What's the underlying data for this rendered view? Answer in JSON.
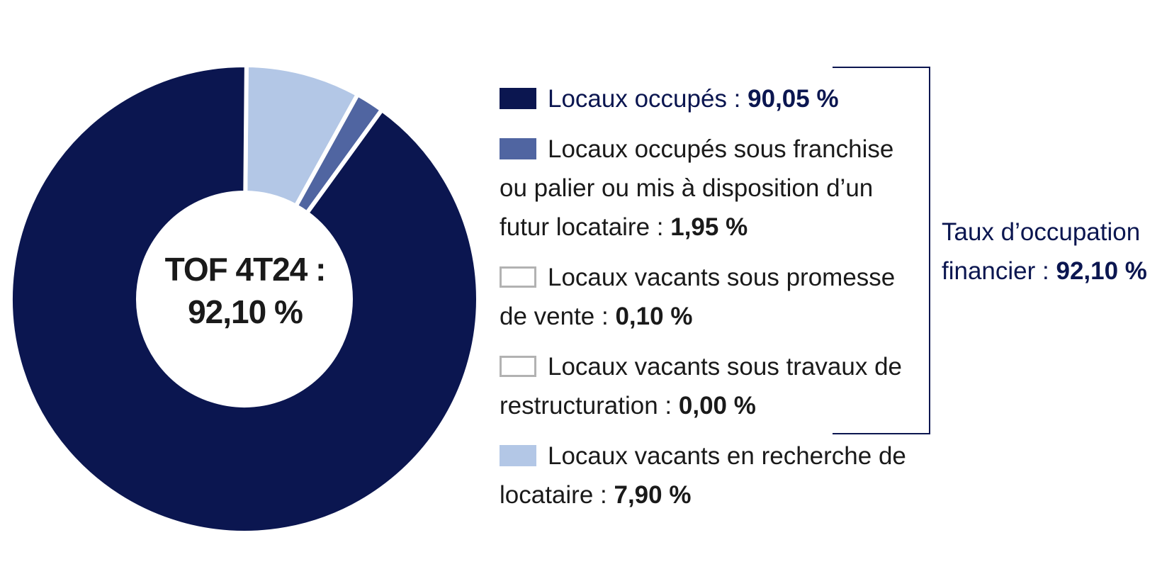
{
  "chart_data": {
    "type": "pie",
    "donut": true,
    "center_label": [
      "TOF 4T24 :",
      "92,10 %"
    ],
    "slices": [
      {
        "label": "Locaux occupés :",
        "value_text": "90,05 %",
        "value": 90.05,
        "color": "#0b1650",
        "shown_in_chart": true
      },
      {
        "label": "Locaux occupés sous franchise ou palier ou mis à disposition d’un futur locataire :",
        "value_text": "1,95 %",
        "value": 1.95,
        "color": "#5065a1",
        "shown_in_chart": true
      },
      {
        "label": "Locaux vacants sous promesse de vente :",
        "value_text": "0,10 %",
        "value": 0.1,
        "color": "#ffffff",
        "outline": "#b2b2b2",
        "shown_in_chart": false
      },
      {
        "label": "Locaux vacants sous travaux de restructuration :",
        "value_text": "0,00 %",
        "value": 0.0,
        "color": "#ffffff",
        "outline": "#b2b2b2",
        "shown_in_chart": false
      },
      {
        "label": "Locaux vacants en recherche de locataire :",
        "value_text": "7,90 %",
        "value": 7.9,
        "color": "#b3c7e6",
        "shown_in_chart": true
      }
    ],
    "bracket_total": {
      "label": "Taux d’occupation financier :",
      "value_text": "92,10 %"
    }
  }
}
